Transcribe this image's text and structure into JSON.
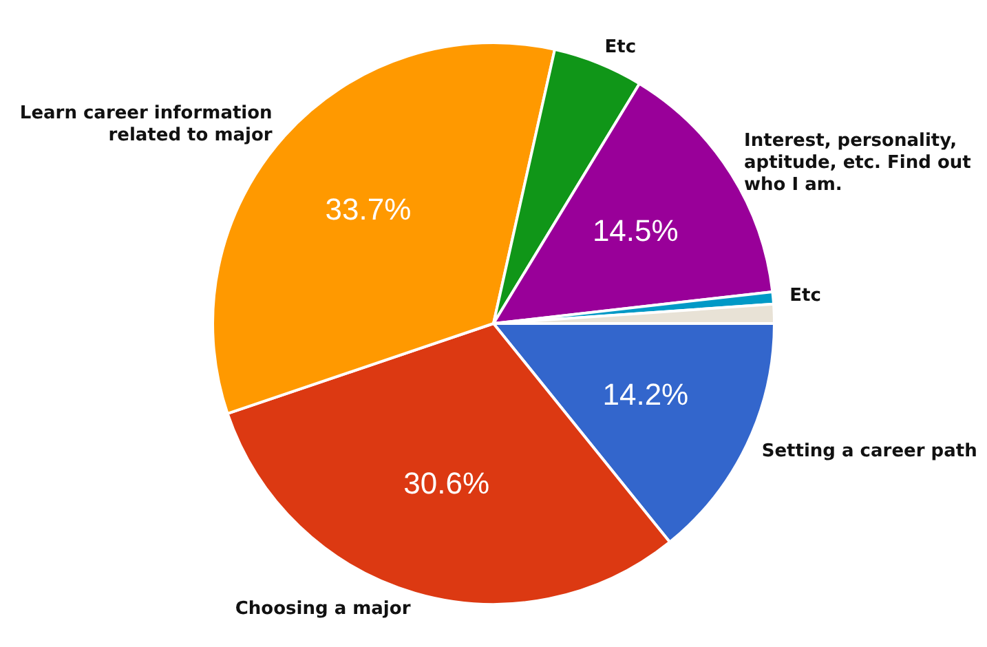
{
  "chart_data": {
    "type": "pie",
    "categories": [
      "Setting a career path",
      "Choosing a major",
      "Learn career information related to major",
      "Etc",
      "Interest, personality, aptitude, etc. Find out who I am.",
      "Etc",
      null
    ],
    "values": [
      14.2,
      30.6,
      33.7,
      5.2,
      14.5,
      0.7,
      1.1
    ],
    "colors": [
      "#3366cc",
      "#dc3912",
      "#ff9900",
      "#109618",
      "#990099",
      "#0099c6",
      "#e8e2d6"
    ],
    "value_labels": [
      "14.2%",
      "30.6%",
      "33.7%",
      null,
      "14.5%",
      null,
      null
    ],
    "legend": false
  }
}
